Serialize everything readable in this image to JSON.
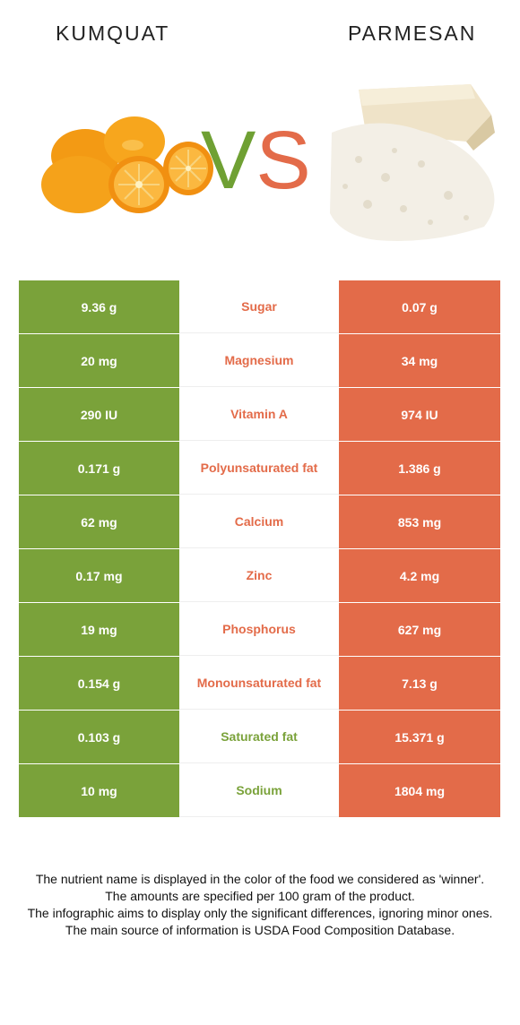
{
  "header": {
    "left_food": "KUMQUAT",
    "right_food": "PARMESAN",
    "vs_v": "V",
    "vs_s": "S"
  },
  "colors": {
    "left": "#7aa23a",
    "right": "#e36b49"
  },
  "rows": [
    {
      "left": "9.36 g",
      "nutrient": "Sugar",
      "right": "0.07 g",
      "winner": "right"
    },
    {
      "left": "20 mg",
      "nutrient": "Magnesium",
      "right": "34 mg",
      "winner": "right"
    },
    {
      "left": "290 IU",
      "nutrient": "Vitamin A",
      "right": "974 IU",
      "winner": "right"
    },
    {
      "left": "0.171 g",
      "nutrient": "Polyunsaturated fat",
      "right": "1.386 g",
      "winner": "right"
    },
    {
      "left": "62 mg",
      "nutrient": "Calcium",
      "right": "853 mg",
      "winner": "right"
    },
    {
      "left": "0.17 mg",
      "nutrient": "Zinc",
      "right": "4.2 mg",
      "winner": "right"
    },
    {
      "left": "19 mg",
      "nutrient": "Phosphorus",
      "right": "627 mg",
      "winner": "right"
    },
    {
      "left": "0.154 g",
      "nutrient": "Monounsaturated fat",
      "right": "7.13 g",
      "winner": "right"
    },
    {
      "left": "0.103 g",
      "nutrient": "Saturated fat",
      "right": "15.371 g",
      "winner": "left"
    },
    {
      "left": "10 mg",
      "nutrient": "Sodium",
      "right": "1804 mg",
      "winner": "left"
    }
  ],
  "footnotes": {
    "line1": "The nutrient name is displayed in the color of the food we considered as 'winner'.",
    "line2": "The amounts are specified per 100 gram of the product.",
    "line3": "The infographic aims to display only the significant differences, ignoring minor ones.",
    "line4": "The main source of information is USDA Food Composition Database."
  }
}
